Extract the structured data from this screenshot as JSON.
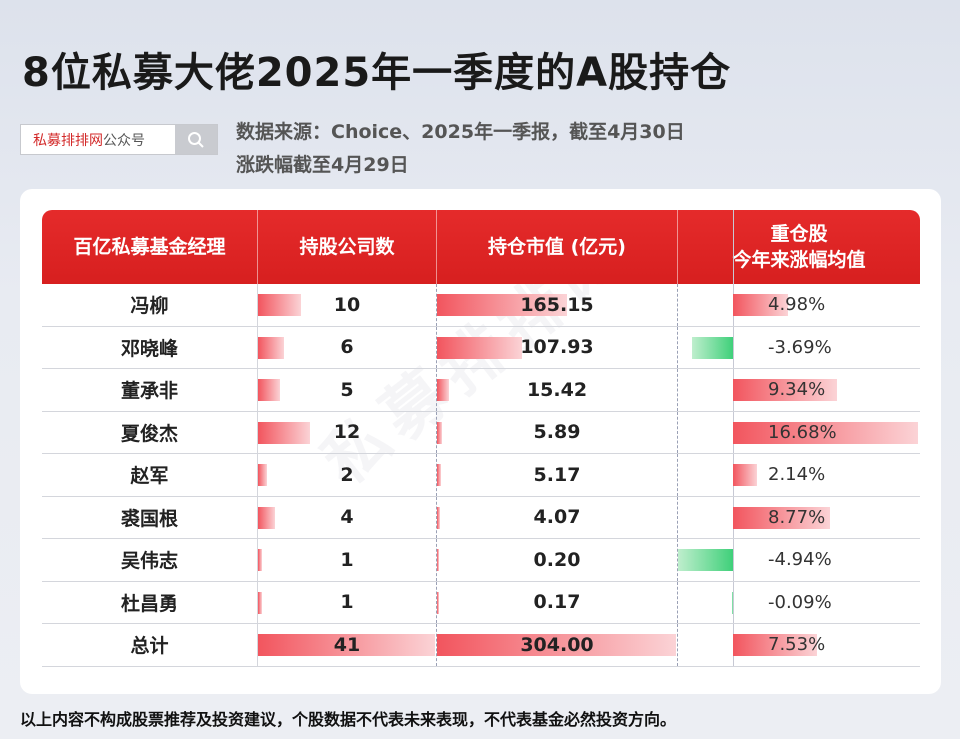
{
  "header": {
    "title": "8位私募大佬2025年一季度的A股持仓",
    "source_line1": "数据来源：Choice、2025年一季报，截至4月30日",
    "source_line2": "涨跌幅截至4月29日"
  },
  "search": {
    "brand_red": "私募排排网",
    "brand_grey": "公众号",
    "icon": "search-icon"
  },
  "table": {
    "headers": [
      "百亿私募基金经理",
      "持股公司数",
      "持仓市值 (亿元)",
      "重仓股",
      "今年来涨幅均值"
    ],
    "rows": [
      {
        "name": "冯柳",
        "count": "10",
        "count_val": 10,
        "value": "165.15",
        "value_num": 165.15,
        "pct": "4.98%",
        "pct_num": 4.98
      },
      {
        "name": "邓晓峰",
        "count": "6",
        "count_val": 6,
        "value": "107.93",
        "value_num": 107.93,
        "pct": "-3.69%",
        "pct_num": -3.69
      },
      {
        "name": "董承非",
        "count": "5",
        "count_val": 5,
        "value": "15.42",
        "value_num": 15.42,
        "pct": "9.34%",
        "pct_num": 9.34
      },
      {
        "name": "夏俊杰",
        "count": "12",
        "count_val": 12,
        "value": "5.89",
        "value_num": 5.89,
        "pct": "16.68%",
        "pct_num": 16.68
      },
      {
        "name": "赵军",
        "count": "2",
        "count_val": 2,
        "value": "5.17",
        "value_num": 5.17,
        "pct": "2.14%",
        "pct_num": 2.14
      },
      {
        "name": "裘国根",
        "count": "4",
        "count_val": 4,
        "value": "4.07",
        "value_num": 4.07,
        "pct": "8.77%",
        "pct_num": 8.77
      },
      {
        "name": "吴伟志",
        "count": "1",
        "count_val": 1,
        "value": "0.20",
        "value_num": 0.2,
        "pct": "-4.94%",
        "pct_num": -4.94
      },
      {
        "name": "杜昌勇",
        "count": "1",
        "count_val": 1,
        "value": "0.17",
        "value_num": 0.17,
        "pct": "-0.09%",
        "pct_num": -0.09
      }
    ],
    "total": {
      "name": "总计",
      "count": "41",
      "count_val": 41,
      "value": "304.00",
      "value_num": 304.0,
      "pct": "7.53%",
      "pct_num": 7.53
    }
  },
  "footer": "以上内容不构成股票推荐及投资建议，个股数据不代表未来表现，不代表基金必然投资方向。",
  "watermark": "私募排排网",
  "colors": {
    "accent": "#d71f1f",
    "positive_bar": "#f2555e",
    "negative_bar": "#3fd07a"
  }
}
